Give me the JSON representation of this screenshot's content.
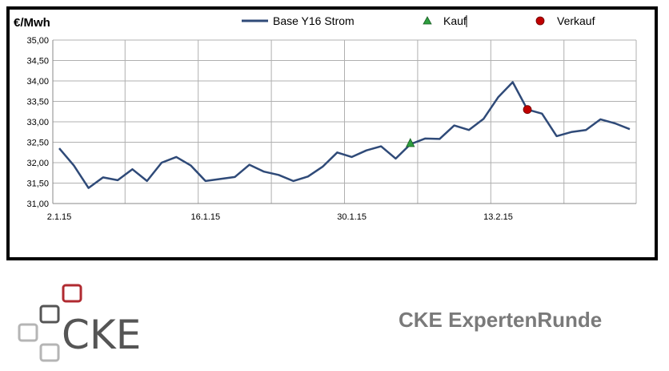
{
  "chart_data": {
    "type": "line",
    "ylabel": "€/Mwh",
    "ylim": [
      31.0,
      35.0
    ],
    "yticks": [
      "31,00",
      "31,50",
      "32,00",
      "32,50",
      "33,00",
      "33,50",
      "34,00",
      "34,50",
      "35,00"
    ],
    "xtick_labels": [
      {
        "label": "2.1.15",
        "index": 0
      },
      {
        "label": "16.1.15",
        "index": 10
      },
      {
        "label": "30.1.15",
        "index": 20
      },
      {
        "label": "13.2.15",
        "index": 30
      }
    ],
    "grid": true,
    "legend_placement": "top",
    "series": [
      {
        "name": "Base Y16 Strom",
        "color": "#2f4a78",
        "values": [
          32.35,
          31.93,
          31.38,
          31.64,
          31.57,
          31.84,
          31.55,
          32.0,
          32.14,
          31.93,
          31.55,
          31.6,
          31.65,
          31.95,
          31.78,
          31.7,
          31.55,
          31.66,
          31.9,
          32.25,
          32.14,
          32.3,
          32.4,
          32.1,
          32.45,
          32.59,
          32.58,
          32.91,
          32.8,
          33.07,
          33.6,
          33.97,
          33.3,
          33.2,
          32.65,
          32.75,
          32.8,
          33.06,
          32.96,
          32.82
        ]
      }
    ],
    "markers": [
      {
        "name": "Kauf",
        "symbol": "triangle",
        "color": "#2e9e3f",
        "index": 24,
        "value": 32.47
      },
      {
        "name": "Verkauf",
        "symbol": "circle",
        "color": "#c00000",
        "index": 32,
        "value": 33.3
      }
    ]
  },
  "branding": {
    "logo_text": "CKE",
    "tagline": "CKE ExpertenRunde"
  },
  "colors": {
    "line": "#2f4a78",
    "grid": "#b0b0b0",
    "tagline": "#7a7a7a",
    "logo_red": "#b02a30",
    "logo_dark": "#555555",
    "logo_light": "#b5b5b5"
  }
}
